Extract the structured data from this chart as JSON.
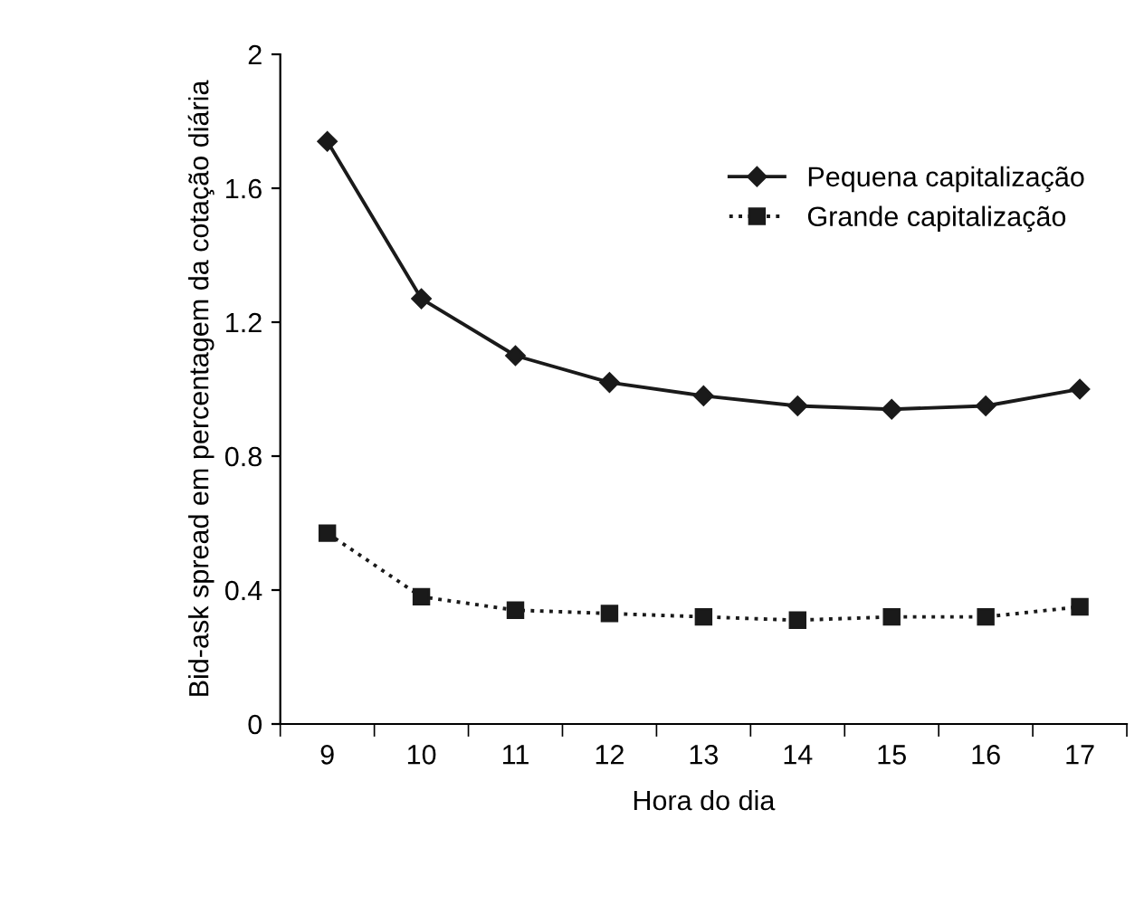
{
  "chart_data": {
    "type": "line",
    "xlabel": "Hora do dia",
    "ylabel": "Bid-ask spread em percentagem da cotação diária",
    "categories": [
      "9",
      "10",
      "11",
      "12",
      "13",
      "14",
      "15",
      "16",
      "17"
    ],
    "series": [
      {
        "name": "Pequena capitalização",
        "color": "#1a1a1a",
        "marker": "diamond",
        "line_style": "solid",
        "values": [
          1.74,
          1.27,
          1.1,
          1.02,
          0.98,
          0.95,
          0.94,
          0.95,
          1.0
        ]
      },
      {
        "name": "Grande capitalização",
        "color": "#1a1a1a",
        "marker": "square",
        "line_style": "dotted",
        "values": [
          0.57,
          0.38,
          0.34,
          0.33,
          0.32,
          0.31,
          0.32,
          0.32,
          0.35
        ]
      }
    ],
    "ylim": [
      0,
      2
    ],
    "yticks": [
      0,
      0.4,
      0.8,
      1.2,
      1.6,
      2
    ],
    "grid": false,
    "legend": "top right"
  }
}
